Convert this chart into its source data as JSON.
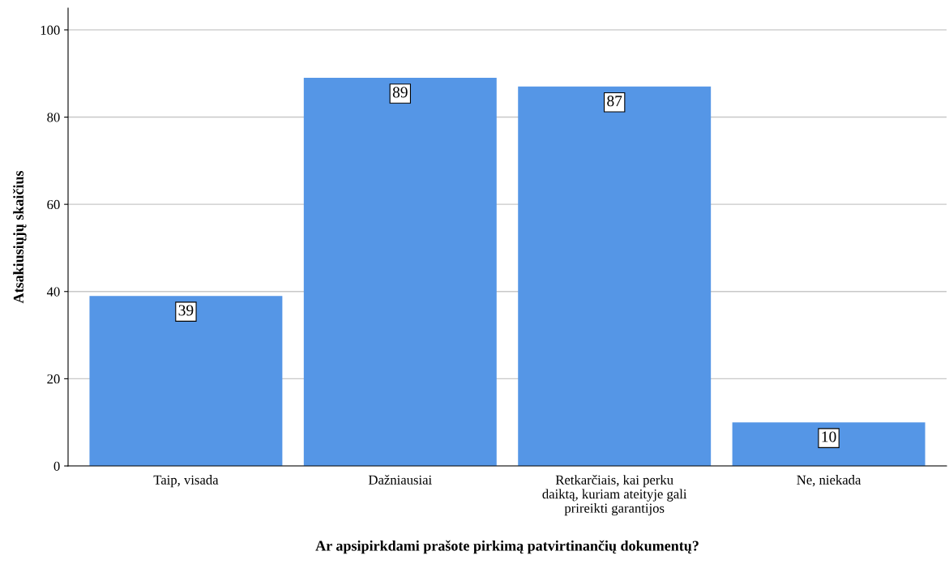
{
  "chart_data": {
    "type": "bar",
    "xlabel": "Ar apsipirkdami prašote pirkimą patvirtinančių dokumentų?",
    "ylabel": "Atsakiusiųjų skaičius",
    "categories": [
      "Taip, visada",
      "Dažniausiai",
      "Retkarčiais, kai perku\ndaiktą, kuriam ateityje gali\nprireikti garantijos",
      "Ne, niekada"
    ],
    "values": [
      39,
      89,
      87,
      10
    ],
    "color": "#5596e6",
    "ylim": [
      0,
      105
    ],
    "yticks": [
      0,
      20,
      40,
      60,
      80,
      100
    ],
    "grid": "y",
    "data_labels": true
  }
}
